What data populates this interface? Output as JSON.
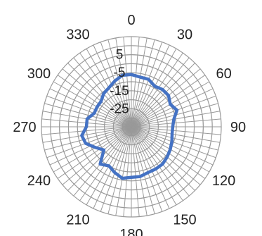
{
  "chart_data": {
    "type": "radar",
    "angle_labels": [
      "0",
      "30",
      "60",
      "90",
      "120",
      "150",
      "180",
      "210",
      "240",
      "270",
      "300",
      "330"
    ],
    "radial_tick_labels": [
      "5",
      "-5",
      "-15",
      "-25"
    ],
    "rlim": [
      -35,
      15
    ],
    "grid": true,
    "spoke_step_degrees": 5,
    "series": [
      {
        "color": "#4472C4",
        "angles": [
          0,
          10,
          20,
          30,
          40,
          50,
          60,
          70,
          80,
          90,
          100,
          110,
          120,
          130,
          140,
          150,
          160,
          170,
          180,
          190,
          200,
          210,
          220,
          230,
          240,
          250,
          260,
          270,
          280,
          290,
          300,
          310,
          320,
          330,
          340,
          350
        ],
        "values": [
          -6,
          -7,
          -7,
          -9,
          -8,
          -8,
          -10,
          -8,
          -11,
          -12,
          -12,
          -11,
          -10,
          -9,
          -8,
          -8,
          -8,
          -7,
          -7,
          -6,
          -8,
          -10,
          -8,
          -15,
          -12,
          -8,
          -7,
          -10,
          -10,
          -13,
          -13,
          -13,
          -11,
          -10,
          -8,
          -6
        ]
      }
    ],
    "title": "",
    "legend": "none"
  },
  "colors": {
    "grid": "#999999",
    "series": "#4472C4",
    "text": "#222222"
  }
}
